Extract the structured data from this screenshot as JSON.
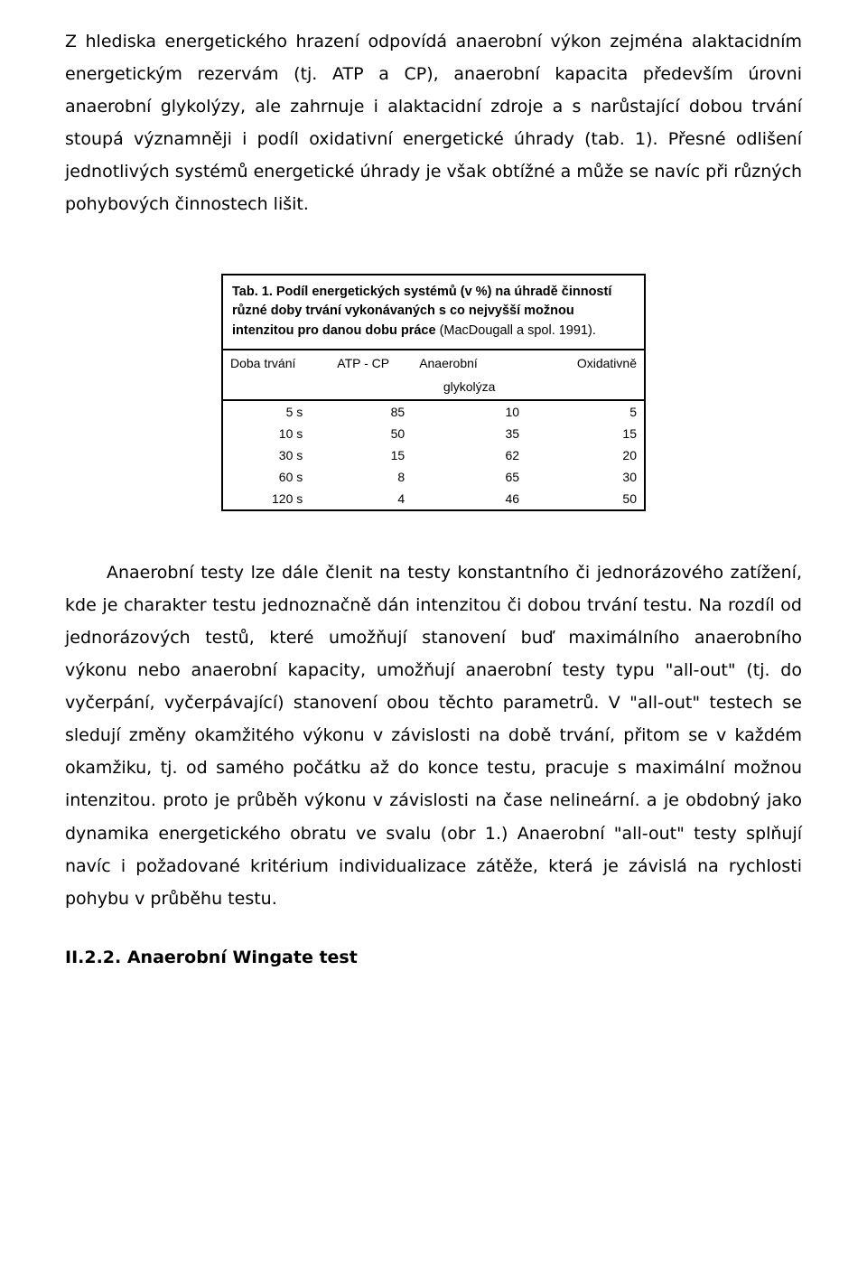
{
  "paragraph1": "Z hlediska energetického hrazení odpovídá anaerobní výkon zejména alaktacidním energetickým rezervám (tj. ATP a CP), anaerobní kapacita především úrovni anaerobní glykolýzy, ale zahrnuje i alaktacidní zdroje a s narůstající dobou trvání stoupá významněji i podíl oxidativní energetické úhrady (tab. 1). Přesné odlišení jednotlivých systémů energetické úhrady je však obtížné a může se navíc při různých pohybových činnostech lišit.",
  "table": {
    "caption_bold": "Tab. 1.  Podíl energetických systémů (v %) na úhradě činností různé doby trvání vykonávaných s co nejvyšší možnou intenzitou pro danou dobu práce",
    "caption_plain": " (MacDougall a spol. 1991).",
    "columns": [
      "Doba trvání",
      "ATP - CP",
      "Anaerobní",
      "Oxidativně"
    ],
    "subheader": "glykolýza",
    "rows": [
      [
        "5 s",
        "85",
        "10",
        "5"
      ],
      [
        "10 s",
        "50",
        "35",
        "15"
      ],
      [
        "30 s",
        "15",
        "62",
        "20"
      ],
      [
        "60 s",
        "8",
        "65",
        "30"
      ],
      [
        "120 s",
        "4",
        "46",
        "50"
      ]
    ],
    "border_color": "#000000",
    "background_color": "#ffffff",
    "font_size_pt": 11
  },
  "paragraph2": "Anaerobní testy lze dále členit na testy konstantního či jednorázového zatížení, kde je charakter testu jednoznačně dán intenzitou či dobou trvání testu. Na rozdíl od jednorázových testů, které umožňují stanovení buď maximálního anaerobního výkonu nebo anaerobní kapacity, umožňují anaerobní testy typu \"all-out\" (tj. do vyčerpání, vyčerpávající) stanovení obou těchto parametrů. V \"all-out\" testech se sledují změny okamžitého výkonu v závislosti na době trvání, přitom se v každém okamžiku, tj. od samého počátku až do konce testu, pracuje s maximální možnou intenzitou. proto je průběh výkonu v závislosti na čase nelineární. a je obdobný jako dynamika energetického obratu ve svalu (obr 1.) Anaerobní \"all-out\" testy splňují navíc i požadované kritérium individualizace zátěže, která je závislá na rychlosti pohybu v průběhu testu.",
  "heading": "II.2.2. Anaerobní Wingate test"
}
